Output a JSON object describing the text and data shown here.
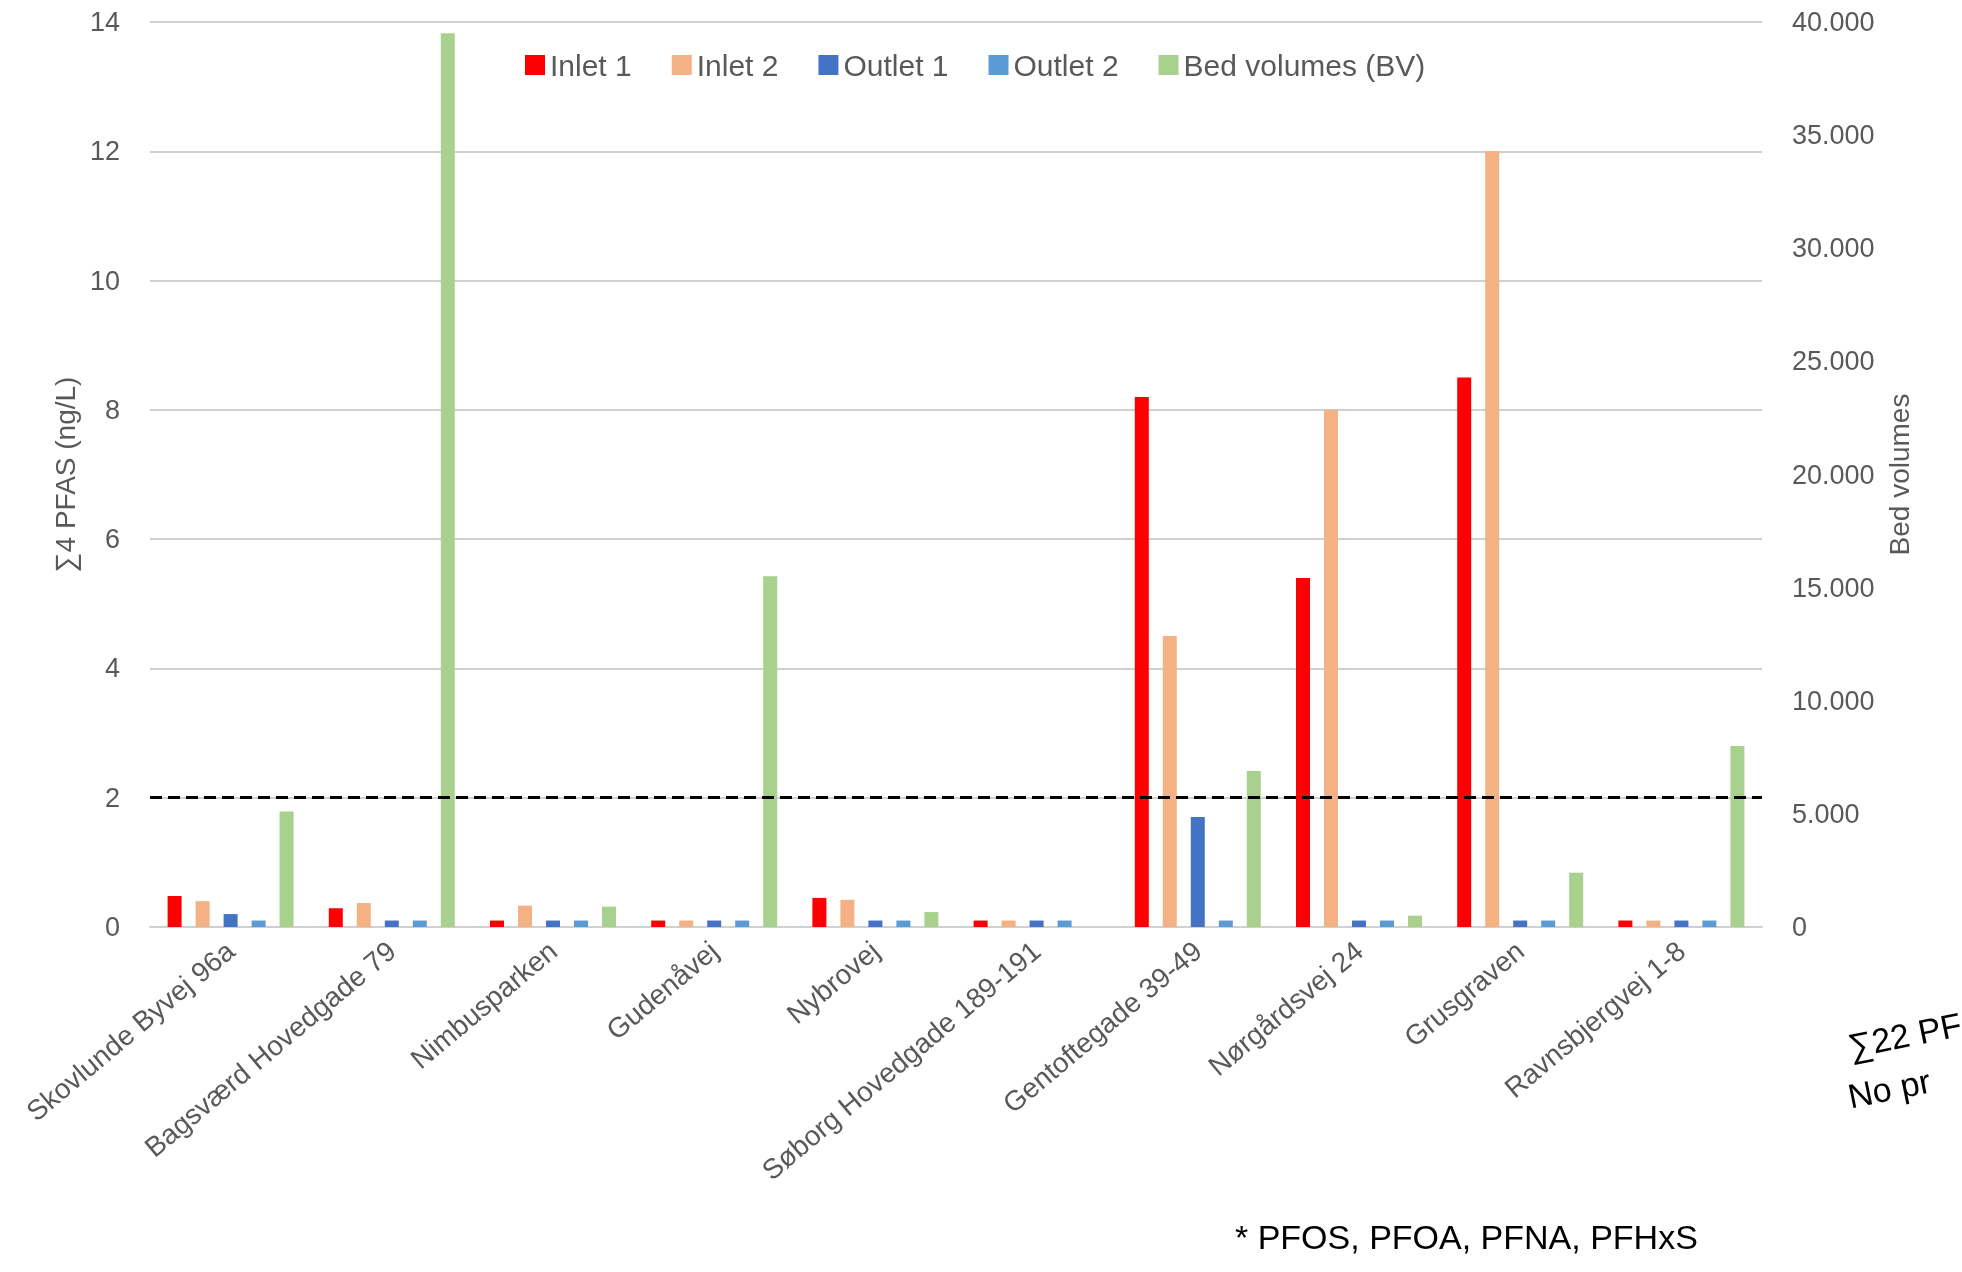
{
  "chart_data": {
    "type": "bar",
    "ylabel": "∑4 PFAS (ng/L)",
    "y2label": "Bed volumes",
    "categories": [
      "Skovlunde Byvej 96a",
      "Bagsværd Hovedgade 79",
      "Nimbusparken",
      "Gudenåvej",
      "Nybrovej",
      "Søborg Hovedgade 189-191",
      "Gentoftegade 39-49",
      "Nørgårdsvej 24",
      "Grusgraven",
      "Ravnsbjergvej 1-8"
    ],
    "series": [
      {
        "name": "Inlet 1",
        "color": "#ff0000",
        "values": [
          0.48,
          0.29,
          0.1,
          0.1,
          0.45,
          0.1,
          8.2,
          5.4,
          8.5,
          0.1
        ]
      },
      {
        "name": "Inlet 2",
        "color": "#f4b183",
        "values": [
          0.4,
          0.37,
          0.33,
          0.1,
          0.42,
          0.1,
          4.5,
          8.0,
          12.0,
          0.1
        ]
      },
      {
        "name": "Outlet 1",
        "color": "#4472c4",
        "values": [
          0.2,
          0.1,
          0.1,
          0.1,
          0.1,
          0.1,
          1.7,
          0.1,
          0.1,
          0.1
        ]
      },
      {
        "name": "Outlet 2",
        "color": "#5b9bd5",
        "values": [
          0.1,
          0.1,
          0.1,
          0.1,
          0.1,
          0.1,
          0.1,
          0.1,
          0.1,
          0.1
        ]
      },
      {
        "name": "Bed volumes (BV)",
        "color": "#a9d18e",
        "axis": "y2",
        "values": [
          5100,
          39500,
          900,
          15500,
          660,
          null,
          6900,
          500,
          2400,
          8000
        ]
      }
    ],
    "ylim": [
      0,
      14
    ],
    "yticks": [
      0,
      2,
      4,
      6,
      8,
      10,
      12,
      14
    ],
    "y2lim": [
      0,
      40000
    ],
    "y2ticks": [
      {
        "value": 0,
        "label": "0"
      },
      {
        "value": 5000,
        "label": "5.000"
      },
      {
        "value": 10000,
        "label": "10.000"
      },
      {
        "value": 15000,
        "label": "15.000"
      },
      {
        "value": 20000,
        "label": "20.000"
      },
      {
        "value": 25000,
        "label": "25.000"
      },
      {
        "value": 30000,
        "label": "30.000"
      },
      {
        "value": 35000,
        "label": "35.000"
      },
      {
        "value": 40000,
        "label": "40.000"
      }
    ],
    "ref_lines": [
      {
        "axis": "y",
        "value": 2,
        "color": "#000000",
        "line_style": "dashed"
      }
    ],
    "grid": "y",
    "legend": "top",
    "annotations": [
      "* PFOS, PFOA, PFNA, PFHxS",
      "∑22 PF",
      "No pr"
    ]
  }
}
